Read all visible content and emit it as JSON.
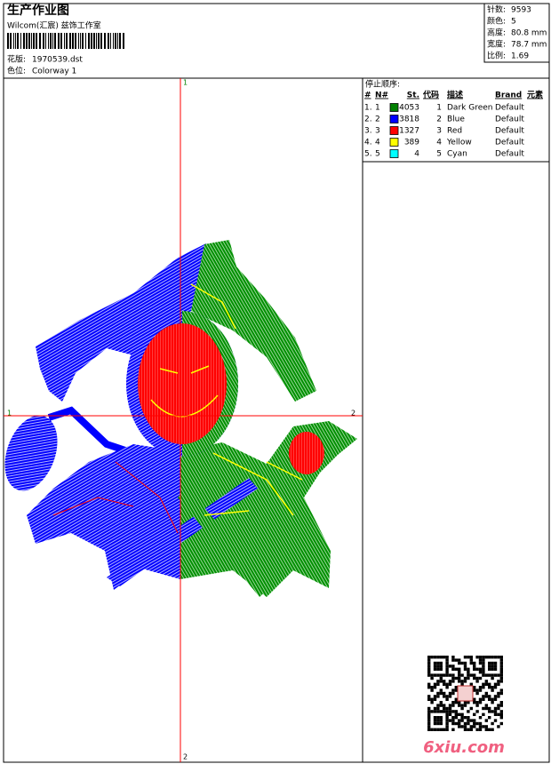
{
  "header": {
    "title": "生产作业图",
    "subtitle": "Wilcom(汇宸) 兹饰工作室",
    "design_label": "花版:",
    "design": "1970539.dst",
    "colorway_label": "色位:",
    "colorway": "Colorway 1"
  },
  "info": [
    {
      "label": "针数:",
      "value": "9593"
    },
    {
      "label": "颜色:",
      "value": "5"
    },
    {
      "label": "高度:",
      "value": "80.8 mm"
    },
    {
      "label": "宽度:",
      "value": "78.7 mm"
    },
    {
      "label": "比例:",
      "value": "1.69"
    }
  ],
  "stop_sequence": {
    "title": "停止顺序:",
    "columns": [
      "#",
      "N#",
      "St.",
      "代码",
      "描述",
      "Brand",
      "元素"
    ],
    "rows": [
      {
        "index": "1.",
        "needle": 1,
        "color": "#008000",
        "stitches": 4053,
        "code": 1,
        "description": "Dark Green",
        "brand": "Default"
      },
      {
        "index": "2.",
        "needle": 2,
        "color": "#0000ff",
        "stitches": 3818,
        "code": 2,
        "description": "Blue",
        "brand": "Default"
      },
      {
        "index": "3.",
        "needle": 3,
        "color": "#ff0000",
        "stitches": 1327,
        "code": 3,
        "description": "Red",
        "brand": "Default"
      },
      {
        "index": "4.",
        "needle": 4,
        "color": "#ffff00",
        "stitches": 389,
        "code": 4,
        "description": "Yellow",
        "brand": "Default"
      },
      {
        "index": "5.",
        "needle": 5,
        "color": "#00ffff",
        "stitches": 4,
        "code": 5,
        "description": "Cyan",
        "brand": "Default"
      }
    ]
  },
  "axes": {
    "top": "1",
    "bottom": "2",
    "left": "1",
    "right": "2"
  },
  "watermark": "6xiu.com"
}
